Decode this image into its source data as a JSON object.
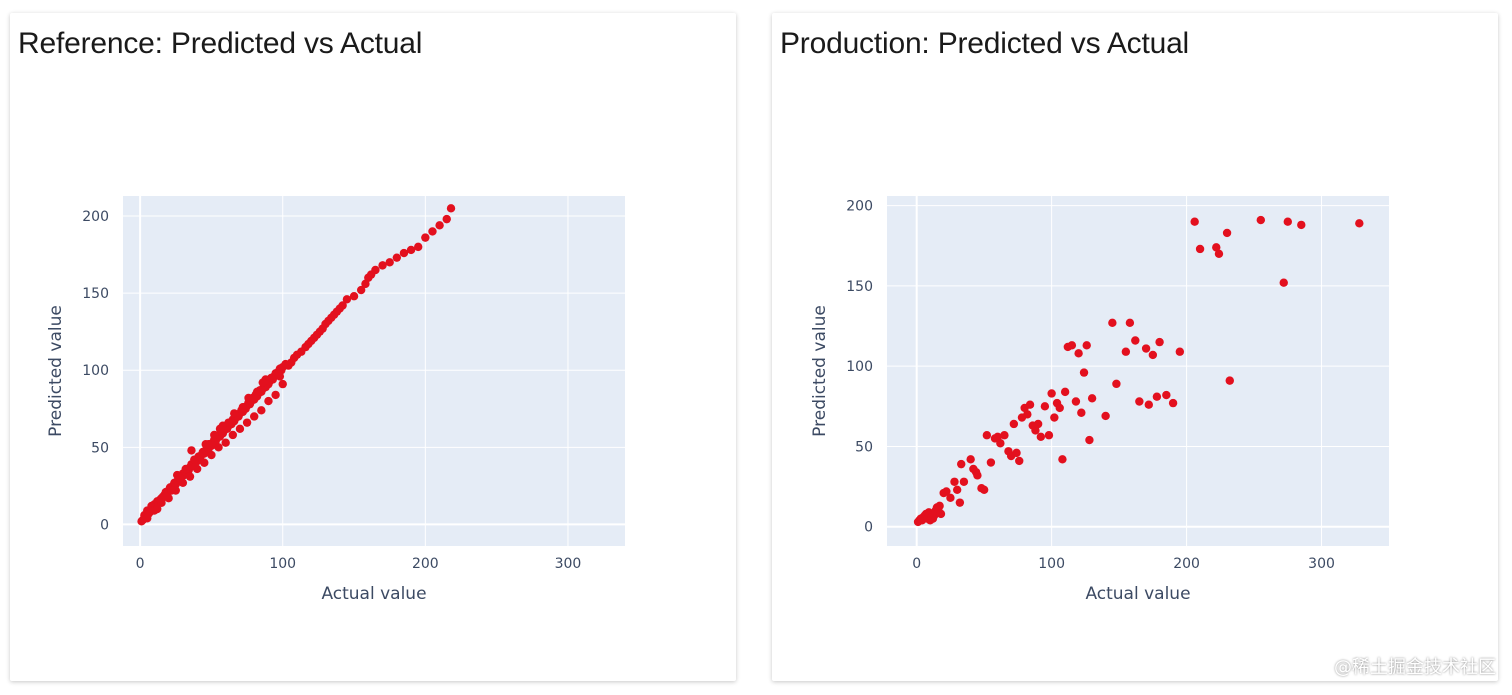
{
  "colors": {
    "marker": "#e3101e",
    "plot_bg": "#e5ecf6",
    "grid": "#ffffff",
    "axis_text": "#3c4a63"
  },
  "chart_data": [
    {
      "type": "scatter",
      "title": "Reference: Predicted vs Actual",
      "xlabel": "Actual value",
      "ylabel": "Predicted value",
      "xlim": [
        -12,
        340
      ],
      "ylim": [
        -14,
        213
      ],
      "x_ticks": [
        0,
        100,
        200,
        300
      ],
      "y_ticks": [
        0,
        50,
        100,
        150,
        200
      ],
      "grid": true,
      "series": [
        {
          "x": [
            1,
            2,
            3,
            3,
            4,
            5,
            5,
            6,
            7,
            8,
            8,
            9,
            10,
            11,
            12,
            13,
            14,
            15,
            16,
            17,
            18,
            19,
            20,
            21,
            22,
            23,
            24,
            25,
            26,
            27,
            28,
            29,
            30,
            31,
            32,
            33,
            34,
            35,
            36,
            37,
            38,
            39,
            40,
            41,
            42,
            43,
            44,
            45,
            46,
            47,
            48,
            49,
            50,
            51,
            52,
            53,
            54,
            55,
            56,
            57,
            58,
            59,
            60,
            61,
            62,
            63,
            64,
            65,
            66,
            67,
            68,
            69,
            70,
            71,
            72,
            73,
            74,
            75,
            76,
            77,
            78,
            79,
            80,
            81,
            82,
            83,
            84,
            85,
            86,
            87,
            88,
            89,
            90,
            91,
            92,
            93,
            94,
            95,
            96,
            97,
            98,
            99,
            100,
            102,
            104,
            106,
            108,
            110,
            113,
            116,
            118,
            120,
            122,
            124,
            126,
            128,
            130,
            132,
            134,
            136,
            138,
            140,
            142,
            145,
            150,
            155,
            158,
            160,
            162,
            165,
            170,
            175,
            180,
            185,
            190,
            195,
            200,
            205,
            210,
            215,
            218,
            5,
            10,
            15,
            20,
            25,
            30,
            35,
            40,
            45,
            50,
            55,
            60,
            65,
            70,
            75,
            80,
            85,
            90,
            95,
            100,
            18,
            28,
            38,
            48,
            58,
            68,
            78,
            88,
            98,
            12,
            22,
            32,
            42,
            52,
            62,
            72,
            82,
            92,
            26,
            36,
            46,
            56,
            66,
            76,
            86
          ],
          "y": [
            2,
            3,
            4,
            6,
            5,
            7,
            9,
            7,
            8,
            10,
            12,
            11,
            13,
            12,
            15,
            14,
            16,
            17,
            18,
            19,
            21,
            20,
            22,
            24,
            23,
            25,
            27,
            26,
            28,
            30,
            29,
            31,
            33,
            32,
            34,
            36,
            35,
            37,
            39,
            38,
            40,
            42,
            41,
            44,
            43,
            45,
            47,
            46,
            48,
            50,
            49,
            52,
            51,
            53,
            55,
            54,
            56,
            58,
            57,
            60,
            59,
            61,
            63,
            62,
            64,
            66,
            65,
            68,
            67,
            69,
            71,
            70,
            72,
            74,
            73,
            76,
            75,
            77,
            79,
            78,
            80,
            82,
            81,
            84,
            83,
            85,
            87,
            86,
            88,
            90,
            89,
            92,
            91,
            93,
            95,
            94,
            96,
            98,
            97,
            99,
            101,
            100,
            102,
            104,
            103,
            105,
            108,
            110,
            112,
            115,
            117,
            119,
            121,
            123,
            125,
            127,
            130,
            132,
            134,
            136,
            138,
            140,
            142,
            146,
            148,
            152,
            156,
            160,
            162,
            165,
            168,
            170,
            173,
            176,
            178,
            180,
            186,
            190,
            194,
            198,
            205,
            4,
            9,
            14,
            17,
            22,
            27,
            31,
            36,
            40,
            45,
            50,
            53,
            58,
            62,
            66,
            70,
            74,
            80,
            84,
            91,
            18,
            30,
            42,
            52,
            64,
            70,
            80,
            94,
            96,
            10,
            22,
            36,
            44,
            58,
            66,
            76,
            86,
            95,
            32,
            48,
            52,
            62,
            72,
            82,
            92
          ]
        }
      ]
    },
    {
      "type": "scatter",
      "title": "Production: Predicted vs Actual",
      "xlabel": "Actual value",
      "ylabel": "Predicted value",
      "xlim": [
        -22,
        350
      ],
      "ylim": [
        -12,
        206
      ],
      "x_ticks": [
        0,
        100,
        200,
        300
      ],
      "y_ticks": [
        0,
        50,
        100,
        150,
        200
      ],
      "grid": true,
      "series": [
        {
          "x": [
            1,
            2,
            3,
            4,
            5,
            6,
            7,
            8,
            9,
            10,
            11,
            12,
            13,
            14,
            15,
            16,
            17,
            18,
            20,
            22,
            25,
            28,
            30,
            32,
            33,
            35,
            40,
            42,
            44,
            45,
            48,
            50,
            52,
            55,
            58,
            60,
            62,
            65,
            68,
            70,
            72,
            74,
            76,
            78,
            80,
            82,
            84,
            86,
            88,
            90,
            92,
            95,
            98,
            100,
            102,
            104,
            106,
            108,
            110,
            112,
            115,
            118,
            120,
            122,
            124,
            126,
            128,
            130,
            140,
            145,
            148,
            155,
            158,
            162,
            165,
            170,
            172,
            175,
            178,
            180,
            185,
            190,
            195,
            206,
            210,
            222,
            224,
            230,
            232,
            255,
            272,
            275,
            285,
            328
          ],
          "y": [
            3,
            4,
            5,
            4,
            6,
            7,
            8,
            5,
            9,
            4,
            6,
            5,
            7,
            10,
            12,
            11,
            13,
            8,
            21,
            22,
            18,
            28,
            23,
            15,
            39,
            28,
            42,
            36,
            34,
            32,
            24,
            23,
            57,
            40,
            55,
            56,
            52,
            57,
            47,
            44,
            64,
            46,
            41,
            68,
            74,
            70,
            76,
            63,
            60,
            64,
            56,
            75,
            57,
            83,
            68,
            77,
            74,
            42,
            84,
            112,
            113,
            78,
            108,
            71,
            96,
            113,
            54,
            80,
            69,
            127,
            89,
            109,
            127,
            116,
            78,
            111,
            76,
            107,
            81,
            115,
            82,
            77,
            109,
            190,
            173,
            174,
            170,
            183,
            91,
            191,
            152,
            190,
            188,
            189
          ]
        }
      ]
    }
  ],
  "watermark": "@稀土掘金技术社区"
}
